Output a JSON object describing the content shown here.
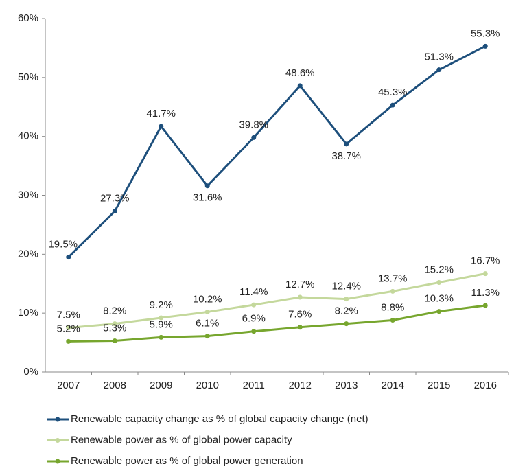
{
  "chart_data": {
    "type": "line",
    "categories": [
      "2007",
      "2008",
      "2009",
      "2010",
      "2011",
      "2012",
      "2013",
      "2014",
      "2015",
      "2016"
    ],
    "series": [
      {
        "name": "Renewable capacity change as % of global capacity change (net)",
        "color": "#1d4f7c",
        "values": [
          19.5,
          27.3,
          41.7,
          31.6,
          39.8,
          48.6,
          38.7,
          45.3,
          51.3,
          55.3
        ],
        "value_labels": [
          "19.5%",
          "27.3%",
          "41.7%",
          "31.6%",
          "39.8%",
          "48.6%",
          "38.7%",
          "45.3%",
          "51.3%",
          "55.3%"
        ]
      },
      {
        "name": "Renewable power as % of global power capacity",
        "color": "#c4d89c",
        "values": [
          7.5,
          8.2,
          9.2,
          10.2,
          11.4,
          12.7,
          12.4,
          13.7,
          15.2,
          16.7
        ],
        "value_labels": [
          "7.5%",
          "8.2%",
          "9.2%",
          "10.2%",
          "11.4%",
          "12.7%",
          "12.4%",
          "13.7%",
          "15.2%",
          "16.7%"
        ]
      },
      {
        "name": "Renewable power as % of global power generation",
        "color": "#77a62e",
        "values": [
          5.2,
          5.3,
          5.9,
          6.1,
          6.9,
          7.6,
          8.2,
          8.8,
          10.3,
          11.3
        ],
        "value_labels": [
          "5.2%",
          "5.3%",
          "5.9%",
          "6.1%",
          "6.9%",
          "7.6%",
          "8.2%",
          "8.8%",
          "10.3%",
          "11.3%"
        ]
      }
    ],
    "ylim": [
      0,
      60
    ],
    "yticks": [
      {
        "value": 0,
        "label": "0%"
      },
      {
        "value": 10,
        "label": "10%"
      },
      {
        "value": 20,
        "label": "20%"
      },
      {
        "value": 30,
        "label": "30%"
      },
      {
        "value": 40,
        "label": "40%"
      },
      {
        "value": 50,
        "label": "50%"
      },
      {
        "value": 60,
        "label": "60%"
      }
    ],
    "legend": "bottom",
    "grid": false
  }
}
